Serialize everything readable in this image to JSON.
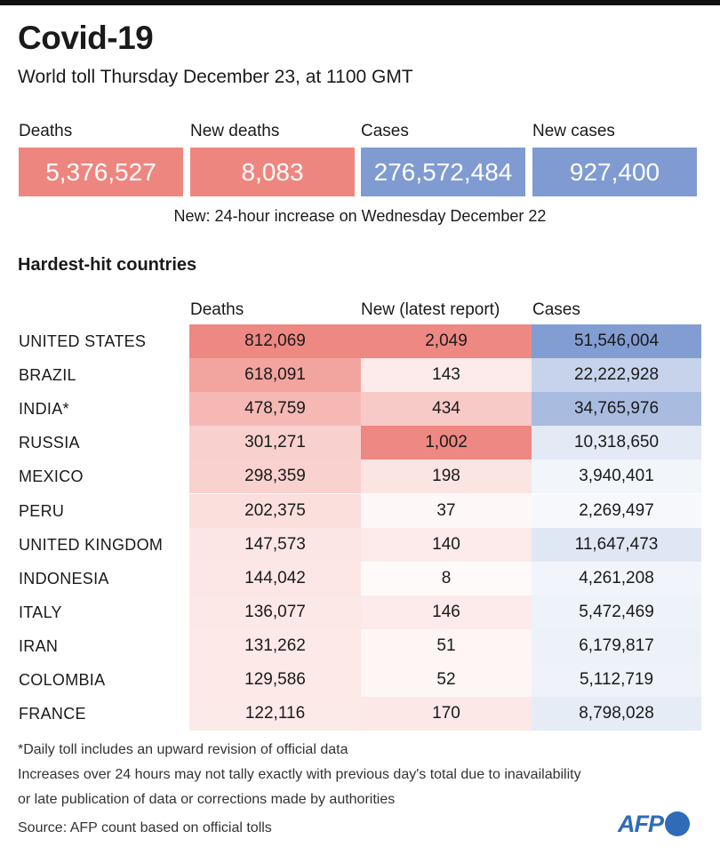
{
  "header": {
    "title": "Covid-19",
    "subtitle": "World toll Thursday December 23, at 1100 GMT"
  },
  "totals": [
    {
      "label": "Deaths",
      "value": "5,376,527",
      "color": "#ee8680"
    },
    {
      "label": "New deaths",
      "value": "8,083",
      "color": "#ee8680"
    },
    {
      "label": "Cases",
      "value": "276,572,484",
      "color": "#7f9bd1"
    },
    {
      "label": "New cases",
      "value": "927,400",
      "color": "#7f9bd1"
    }
  ],
  "note": "New: 24-hour increase on Wednesday December 22",
  "section_title": "Hardest-hit countries",
  "chart_data": {
    "type": "table",
    "title": "Hardest-hit countries",
    "columns": [
      "Deaths",
      "New (latest report)",
      "Cases"
    ],
    "rows": [
      {
        "country": "UNITED STATES",
        "deaths": "812,069",
        "new": "2,049",
        "cases": "51,546,004"
      },
      {
        "country": "BRAZIL",
        "deaths": "618,091",
        "new": "143",
        "cases": "22,222,928"
      },
      {
        "country": "INDIA*",
        "deaths": "478,759",
        "new": "434",
        "cases": "34,765,976"
      },
      {
        "country": "RUSSIA",
        "deaths": "301,271",
        "new": "1,002",
        "cases": "10,318,650"
      },
      {
        "country": "MEXICO",
        "deaths": "298,359",
        "new": "198",
        "cases": "3,940,401"
      },
      {
        "country": "PERU",
        "deaths": "202,375",
        "new": "37",
        "cases": "2,269,497"
      },
      {
        "country": "UNITED KINGDOM",
        "deaths": "147,573",
        "new": "140",
        "cases": "11,647,473"
      },
      {
        "country": "INDONESIA",
        "deaths": "144,042",
        "new": "8",
        "cases": "4,261,208"
      },
      {
        "country": "ITALY",
        "deaths": "136,077",
        "new": "146",
        "cases": "5,472,469"
      },
      {
        "country": "IRAN",
        "deaths": "131,262",
        "new": "51",
        "cases": "6,179,817"
      },
      {
        "country": "COLOMBIA",
        "deaths": "129,586",
        "new": "52",
        "cases": "5,112,719"
      },
      {
        "country": "FRANCE",
        "deaths": "122,116",
        "new": "170",
        "cases": "8,798,028"
      }
    ],
    "colors": {
      "deaths": "#ee8680",
      "cases": "#7f9bd1"
    }
  },
  "footnotes": [
    "*Daily toll includes an upward revision of official data",
    "Increases over 24 hours may not tally exactly with previous day's total due to inavailability",
    "or late publication of data or corrections made by authorities",
    "Source: AFP count based on official tolls"
  ],
  "logo": "AFP"
}
